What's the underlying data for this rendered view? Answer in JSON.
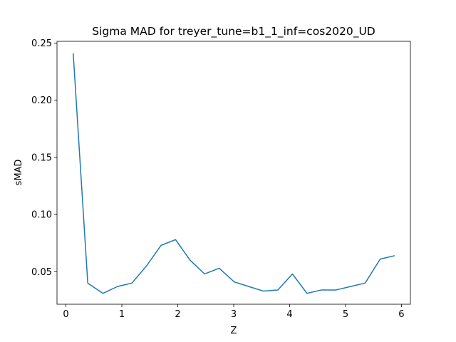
{
  "chart_data": {
    "type": "line",
    "title": "Sigma MAD for treyer_tune=b1_1_inf=cos2020_UD",
    "xlabel": "Z",
    "ylabel": "sMAD",
    "xlim": [
      -0.16,
      6.16
    ],
    "ylim": [
      0.0215,
      0.2515
    ],
    "x_ticks": [
      0,
      1,
      2,
      3,
      4,
      5,
      6
    ],
    "x_tick_labels": [
      "0",
      "1",
      "2",
      "3",
      "4",
      "5",
      "6"
    ],
    "y_ticks": [
      0.05,
      0.1,
      0.15,
      0.2,
      0.25
    ],
    "y_tick_labels": [
      "0.05",
      "0.10",
      "0.15",
      "0.20",
      "0.25"
    ],
    "grid": false,
    "series": [
      {
        "color": "#1f77b4",
        "x": [
          0.13,
          0.39,
          0.66,
          0.92,
          1.18,
          1.44,
          1.7,
          1.96,
          2.22,
          2.48,
          2.74,
          3.01,
          3.27,
          3.53,
          3.79,
          4.05,
          4.31,
          4.57,
          4.83,
          5.09,
          5.35,
          5.62,
          5.88
        ],
        "values": [
          0.241,
          0.04,
          0.031,
          0.037,
          0.04,
          0.055,
          0.073,
          0.078,
          0.06,
          0.048,
          0.053,
          0.041,
          0.037,
          0.033,
          0.034,
          0.048,
          0.031,
          0.034,
          0.034,
          0.037,
          0.04,
          0.061,
          0.064
        ]
      }
    ]
  }
}
